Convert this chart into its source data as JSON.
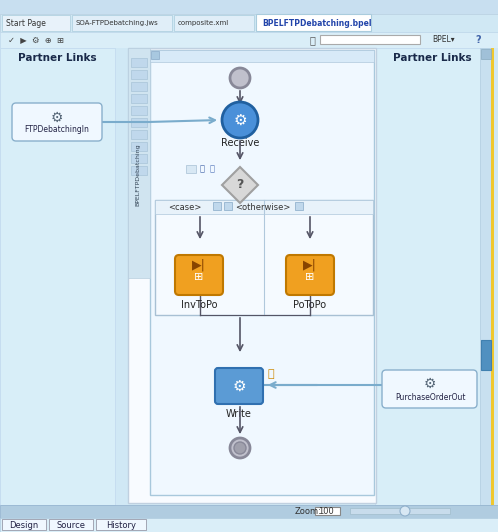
{
  "bg_color": "#d6eaf8",
  "canvas_bg": "#f0f8ff",
  "title_bar_color": "#c8dff0",
  "tab_bar_bg": "#e8f4fc",
  "tab_active_text": "BPELFTPDebatching.bpel",
  "tab1": "Start Page",
  "tab2": "SOA-FTPDebatching.jws",
  "tab3": "composite.xml",
  "tab4": "BPELFTPDebatching.bpel",
  "toolbar_bg": "#daeef8",
  "main_area_bg": "#f5fbff",
  "partner_links_bg": "#d6eaf8",
  "flow_area_bg": "#ffffff",
  "flow_border": "#b0c8d8",
  "partner_left_label": "Partner Links",
  "partner_right_label": "Partner Links",
  "left_partner_box_label": "FTPDebatchingIn",
  "right_partner_box_label": "PurchaseOrderOut",
  "receive_label": "Receive",
  "write_label": "Write",
  "invtopo_label": "InvToPo",
  "potopo_label": "PoToPo",
  "case_label": "<case>",
  "otherwise_label": "<otherwise>",
  "zoom_label": "Zoom:",
  "zoom_value": "100",
  "bottom_tabs": [
    "Design",
    "Source",
    "History"
  ],
  "receive_color": "#4a90d9",
  "write_color": "#5b9bd5",
  "invoke_color": "#f0a500",
  "diamond_color": "#c8c8c8",
  "start_end_color": "#a0a0b0",
  "connector_color": "#5a8ab0",
  "arrow_color": "#555555",
  "sidebar_bg": "#d0e8f0",
  "sidebar_text": "BPELFTPDebatching",
  "scrollbar_color": "#b0cce0",
  "right_scrollbar_color": "#4a9ae0"
}
